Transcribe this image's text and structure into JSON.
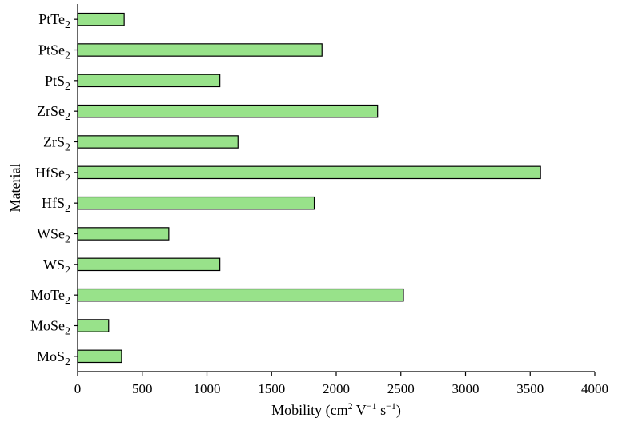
{
  "chart_data": {
    "type": "bar",
    "orientation": "horizontal",
    "categories": [
      {
        "base": "MoS",
        "sub": "2"
      },
      {
        "base": "MoSe",
        "sub": "2"
      },
      {
        "base": "MoTe",
        "sub": "2"
      },
      {
        "base": "WS",
        "sub": "2"
      },
      {
        "base": "WSe",
        "sub": "2"
      },
      {
        "base": "HfS",
        "sub": "2"
      },
      {
        "base": "HfSe",
        "sub": "2"
      },
      {
        "base": "ZrS",
        "sub": "2"
      },
      {
        "base": "ZrSe",
        "sub": "2"
      },
      {
        "base": "PtS",
        "sub": "2"
      },
      {
        "base": "PtSe",
        "sub": "2"
      },
      {
        "base": "PtTe",
        "sub": "2"
      }
    ],
    "values": [
      340,
      240,
      2520,
      1100,
      705,
      1830,
      3580,
      1240,
      2320,
      1100,
      1890,
      360
    ],
    "xlabel": {
      "parts": [
        {
          "text": "Mobility (cm"
        },
        {
          "text": "2",
          "sup": true
        },
        {
          "text": " V"
        },
        {
          "text": "−1",
          "sup": true
        },
        {
          "text": " s"
        },
        {
          "text": "−1",
          "sup": true
        },
        {
          "text": ")"
        }
      ]
    },
    "ylabel": "Material",
    "xlim": [
      0,
      4000
    ],
    "xticks": [
      0,
      500,
      1000,
      1500,
      2000,
      2500,
      3000,
      3500,
      4000
    ],
    "bar_color": "#98e28a",
    "grid": false,
    "legend": false
  }
}
